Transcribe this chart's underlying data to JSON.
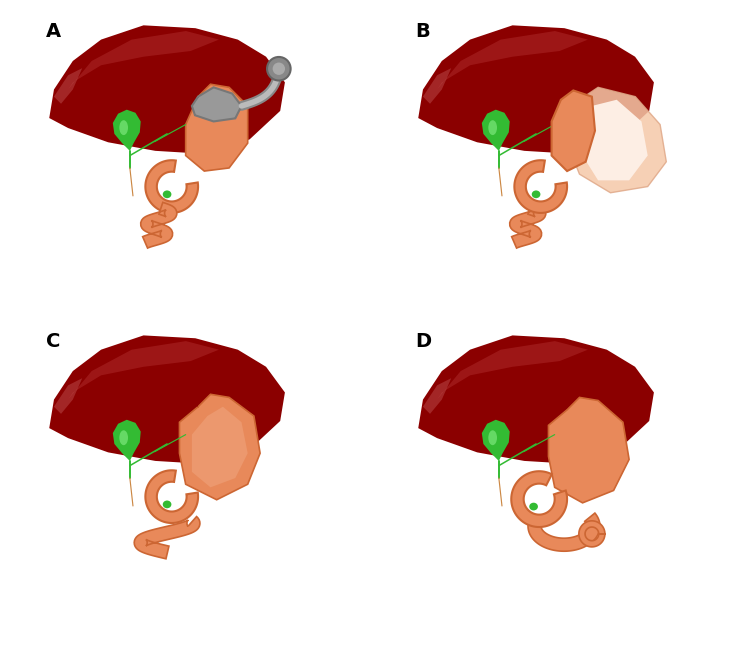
{
  "panel_labels": [
    "A",
    "B",
    "C",
    "D"
  ],
  "liver_dark": "#7B0000",
  "liver_mid": "#8B0000",
  "liver_highlight": "#C04040",
  "liver_highlight2": "#A83030",
  "gallbladder_dark": "#228B22",
  "gallbladder_light": "#44DD44",
  "stomach_main": "#E8895A",
  "stomach_light": "#F0A882",
  "stomach_dark": "#CC6633",
  "stomach_inner": "#F5C4A0",
  "sleeve_ghost_fill": "#F0C8A8",
  "sleeve_ghost_edge": "#DDA880",
  "device_gray": "#999999",
  "device_light": "#BBBBBB",
  "background": "#FFFFFF",
  "label_fontsize": 14,
  "label_fontweight": "bold"
}
